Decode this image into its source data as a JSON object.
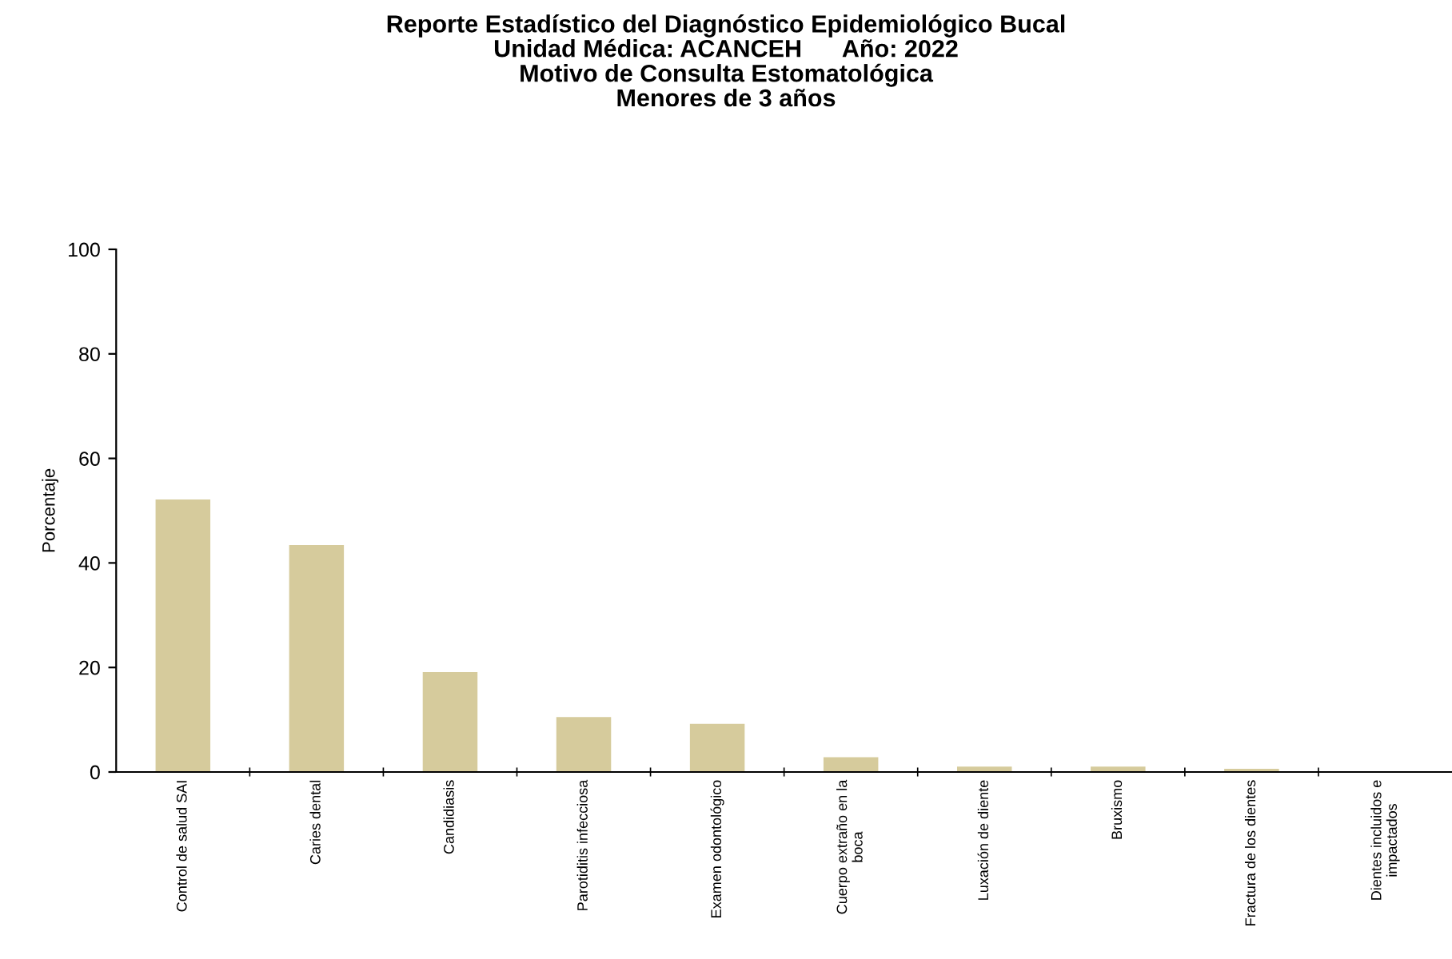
{
  "chart_data": {
    "type": "bar",
    "title": "Reporte Estadístico del Diagnóstico Epidemiológico Bucal\nUnidad Médica: ACANCEH      Año: 2022\nMotivo de Consulta Estomatológica\nMenores de 3 años",
    "ylabel": "Porcentaje",
    "categories": [
      "Control de salud SAI",
      "Caries dental",
      "Candidiasis",
      "Parotiditis infecciosa",
      "Examen odontológico",
      "Cuerpo extraño en la\nboca",
      "Luxación de diente",
      "Bruxismo",
      "Fractura de los dientes",
      "Dientes incluidos e\nimpactados"
    ],
    "values": [
      52,
      43.3,
      19,
      10.4,
      9.1,
      2.7,
      0.9,
      0.9,
      0.5,
      0
    ],
    "color": "#d6cb9c",
    "ylim": [
      0,
      100
    ],
    "yticks": [
      0,
      20,
      40,
      60,
      80,
      100
    ],
    "grid": false
  }
}
